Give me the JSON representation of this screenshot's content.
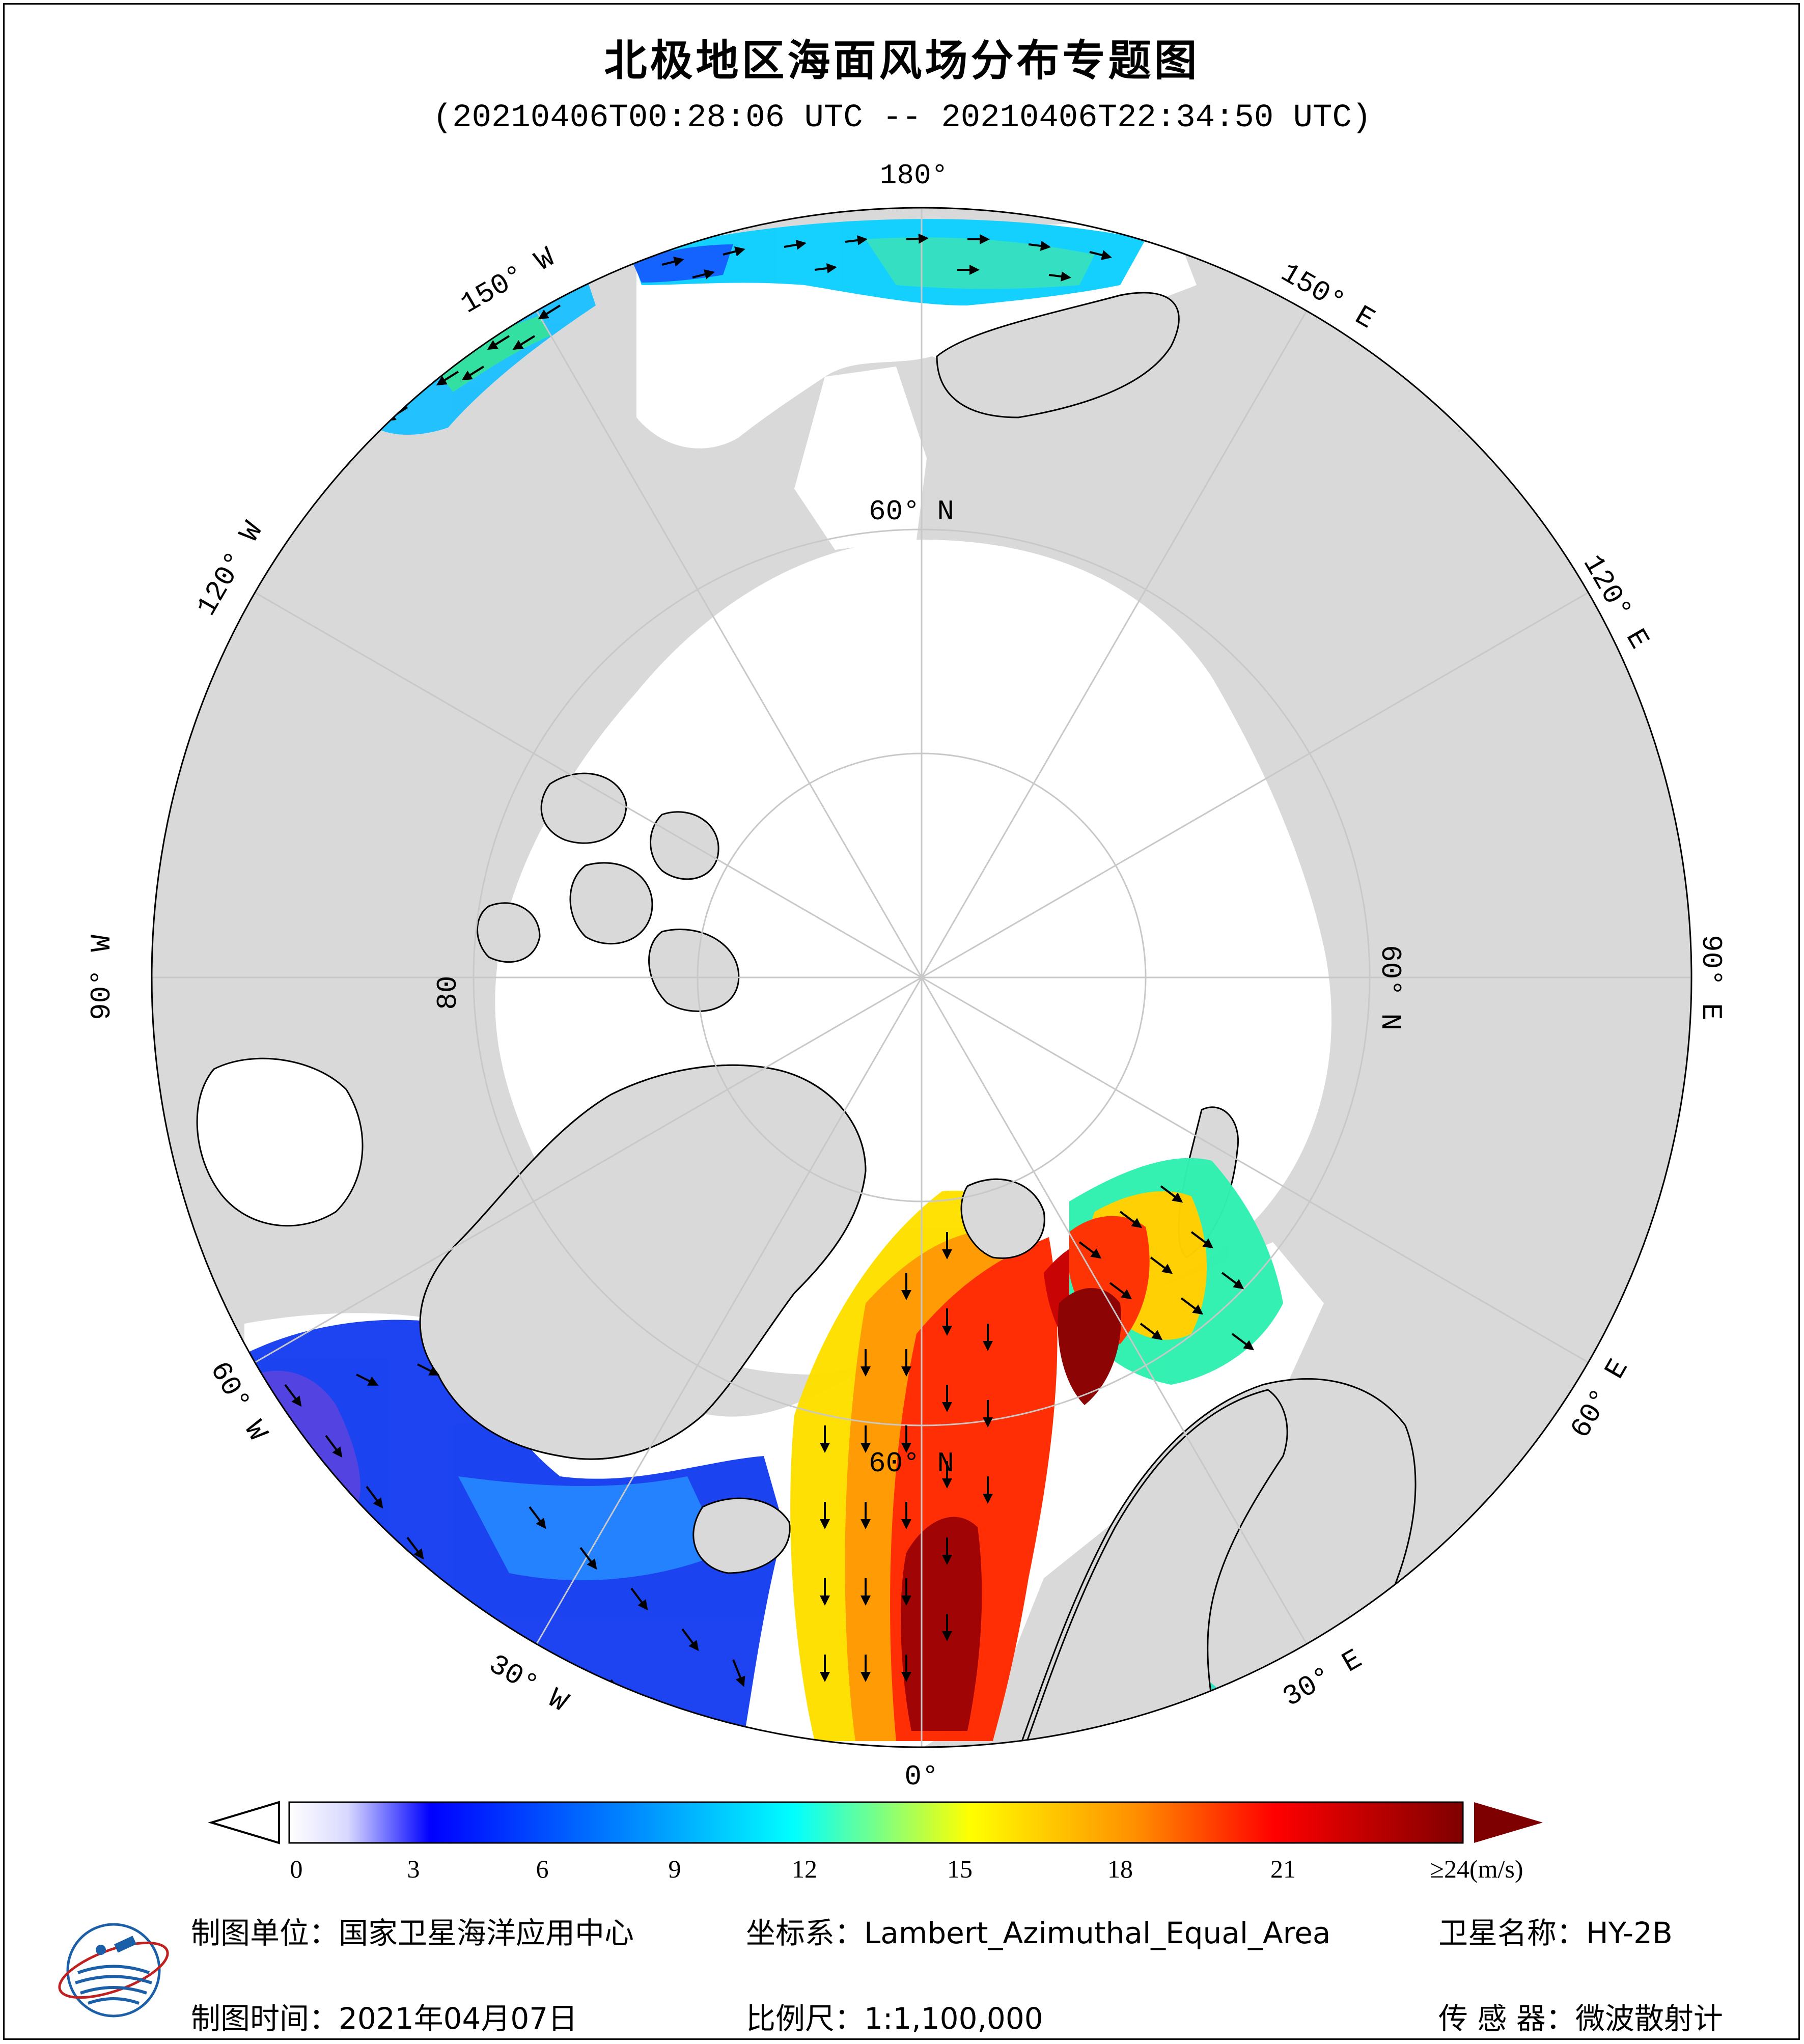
{
  "title": "北极地区海面风场分布专题图",
  "subtitle": "(20210406T00:28:06 UTC -- 20210406T22:34:50 UTC)",
  "map": {
    "projection_note": "polar stereographic view centered on North Pole",
    "meridian_labels": {
      "lon_180": "180°",
      "lon_150w": "150° W",
      "lon_120w": "120° W",
      "lon_90w": "90° W",
      "lon_60w": "60° W",
      "lon_30w": "30° W",
      "lon_0": "0°",
      "lon_30e": "30° E",
      "lon_60e": "60° E",
      "lon_90e": "90° E",
      "lon_120e": "120° E",
      "lon_150e": "150° E"
    },
    "parallel_labels": {
      "lat_60_top": "60° N",
      "lat_60_right": "60° N",
      "lat_60_bottom": "60° N",
      "lat_80_left": "80"
    },
    "colors": {
      "land": "#d9d9d9",
      "ocean": "#ffffff",
      "grid": "#c8c8c8",
      "coast": "#000000",
      "arrow": "#000000"
    }
  },
  "colorbar": {
    "ticks": [
      "0",
      "3",
      "6",
      "9",
      "12",
      "15",
      "18",
      "21",
      "≥24(m/s)"
    ],
    "tick_values": [
      0,
      3,
      6,
      9,
      12,
      15,
      18,
      21,
      24
    ],
    "range": [
      0,
      24
    ],
    "under_color": "#ffffff",
    "over_color": "#7f0000"
  },
  "footer": {
    "unit": "制图单位：国家卫星海洋应用中心",
    "coord": "坐标系：Lambert_Azimuthal_Equal_Area",
    "satellite": "卫星名称：HY-2B",
    "time": "制图时间：2021年04月07日",
    "scale": "比例尺：1:1,100,000",
    "sensor": "传 感 器：微波散射计"
  },
  "logo": {
    "icon": "nsoas-globe-logo"
  }
}
